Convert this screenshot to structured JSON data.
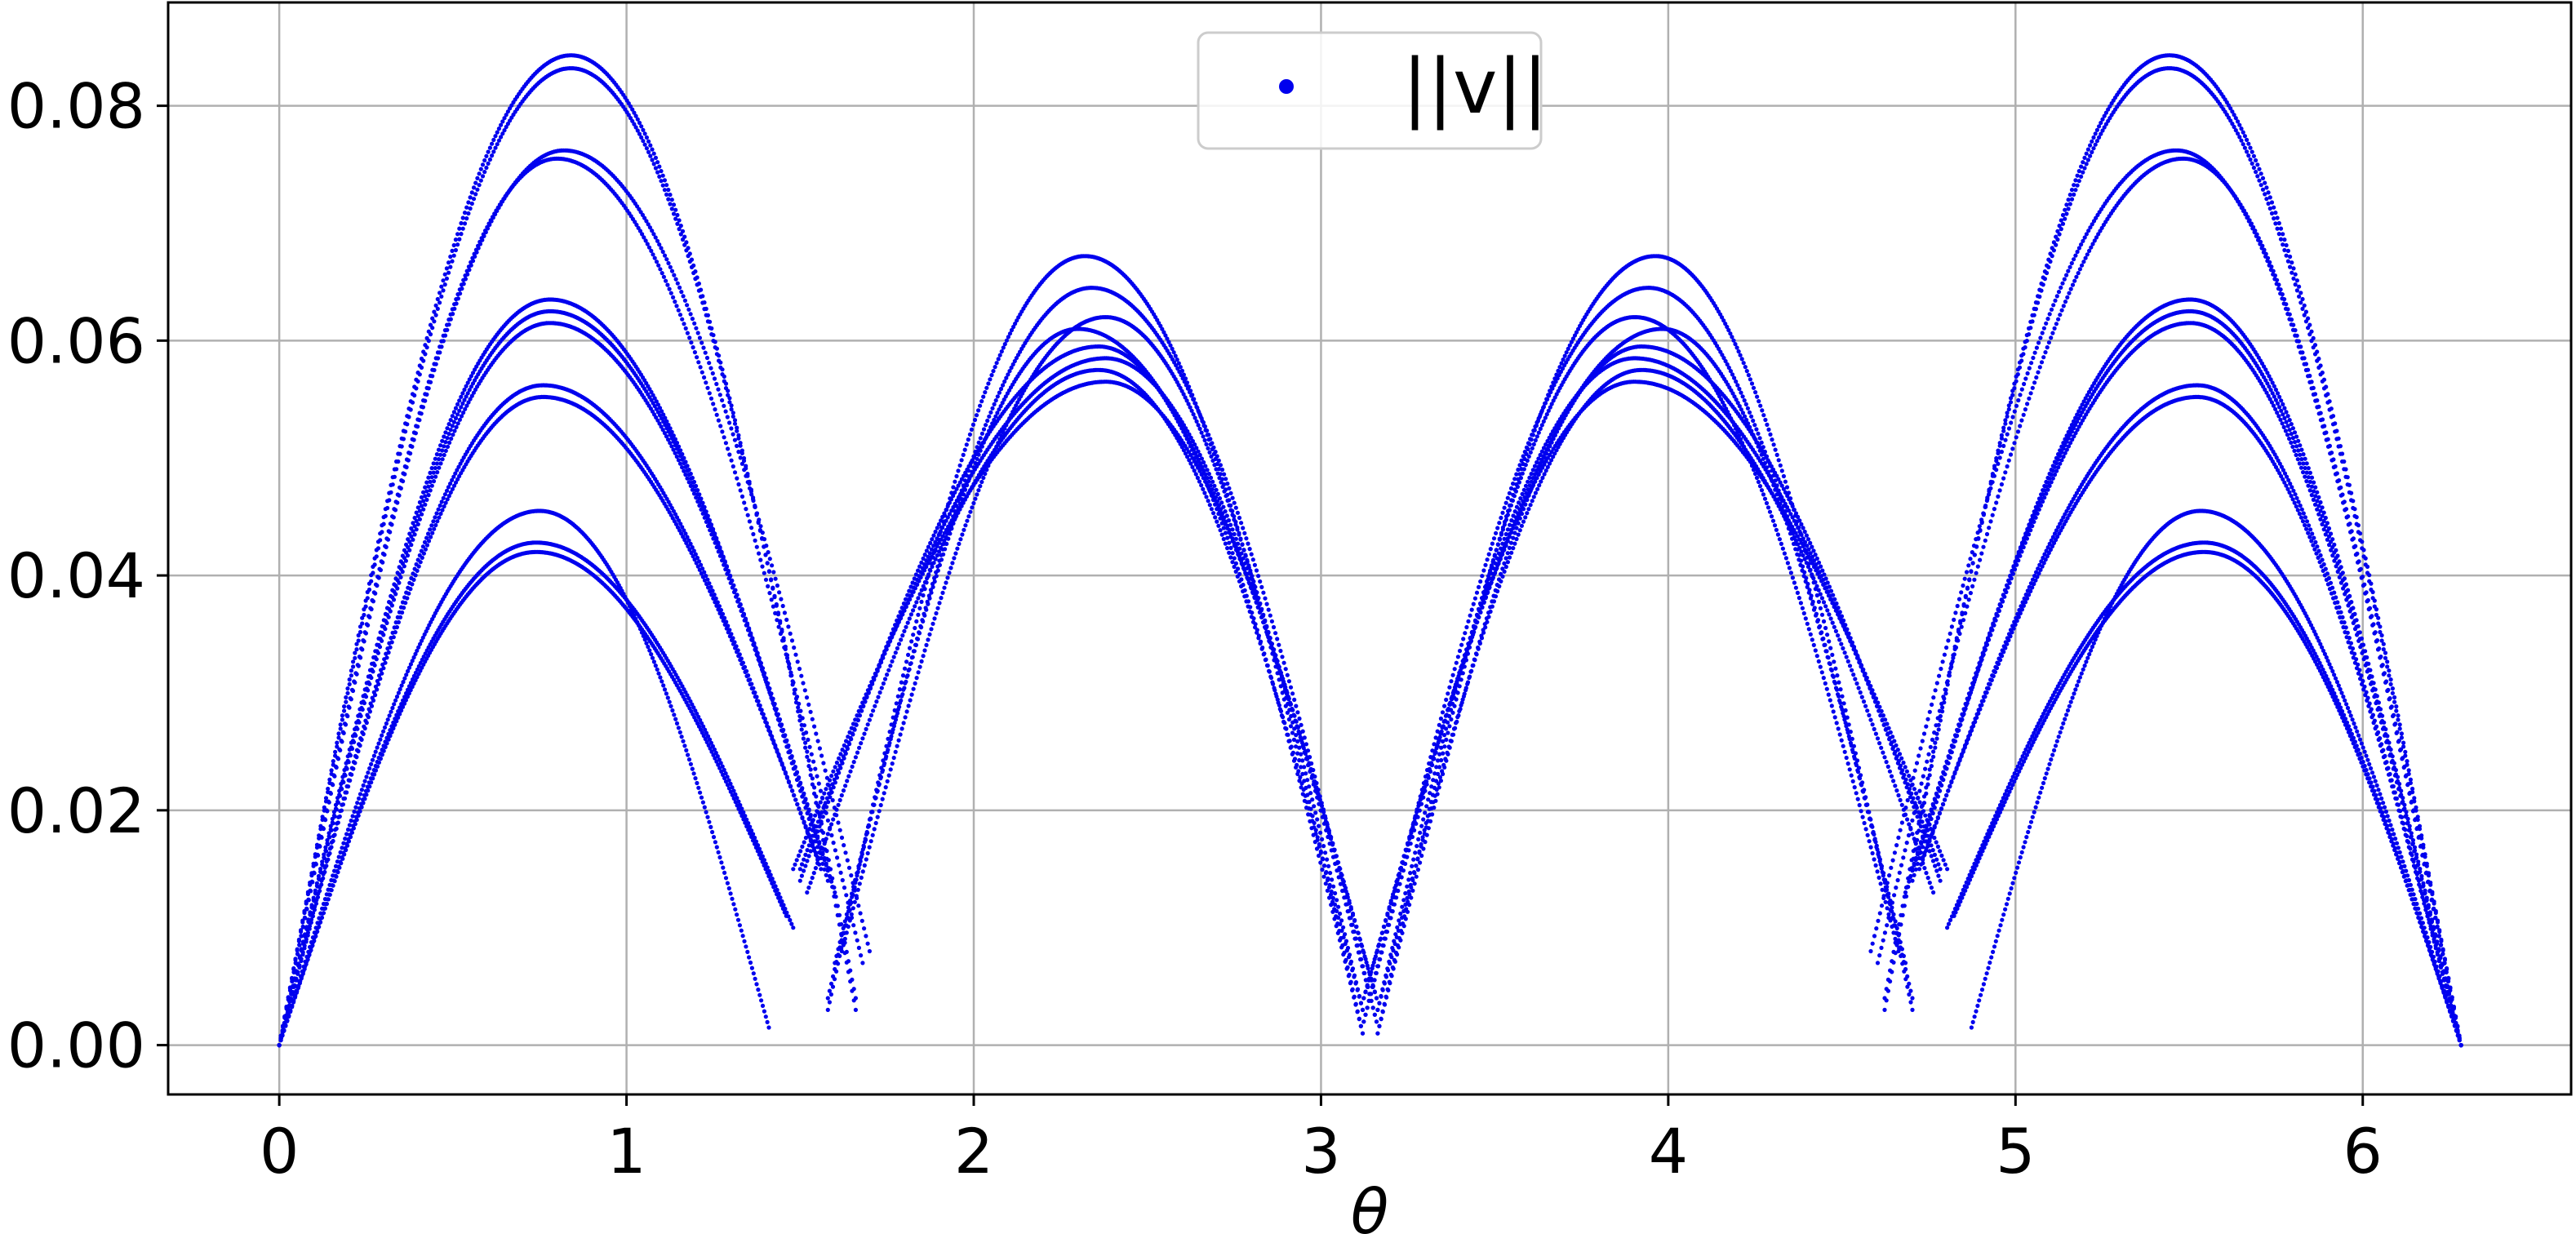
{
  "colors": {
    "series": "#0000ee",
    "grid": "#b0b0b0",
    "frame": "#000000",
    "legend_border": "#cccccc"
  },
  "chart_data": {
    "type": "scatter",
    "title": "",
    "xlabel": "θ",
    "ylabel": "",
    "xlim": [
      -0.32,
      6.6
    ],
    "ylim": [
      -0.0042,
      0.0888
    ],
    "grid": true,
    "legend_placement": "top-center",
    "x_ticks": [
      0,
      1,
      2,
      3,
      4,
      5,
      6
    ],
    "x_tick_labels": [
      "0",
      "1",
      "2",
      "3",
      "4",
      "5",
      "6"
    ],
    "y_ticks": [
      0.0,
      0.02,
      0.04,
      0.06,
      0.08
    ],
    "y_tick_labels": [
      "0.00",
      "0.02",
      "0.04",
      "0.06",
      "0.08"
    ],
    "series": [
      {
        "name": "||v||",
        "description_of_shape": "Family of sampled curves, symmetric about θ=π, each a union of arch segments",
        "curve_families": {
          "outer_lobes": [
            {
              "peak_theta": 0.84,
              "peak_value": 0.0843,
              "dip_theta": 1.66,
              "dip_value": 0.003
            },
            {
              "peak_theta": 0.84,
              "peak_value": 0.0832,
              "dip_theta": 1.66,
              "dip_value": 0.004
            },
            {
              "peak_theta": 0.82,
              "peak_value": 0.0762,
              "dip_theta": 1.7,
              "dip_value": 0.008
            },
            {
              "peak_theta": 0.8,
              "peak_value": 0.0755,
              "dip_theta": 1.68,
              "dip_value": 0.007
            },
            {
              "peak_theta": 0.78,
              "peak_value": 0.0635,
              "dip_theta": 1.58,
              "dip_value": 0.014
            },
            {
              "peak_theta": 0.78,
              "peak_value": 0.0625,
              "dip_theta": 1.58,
              "dip_value": 0.015
            },
            {
              "peak_theta": 0.78,
              "peak_value": 0.0615,
              "dip_theta": 1.6,
              "dip_value": 0.013
            },
            {
              "peak_theta": 0.76,
              "peak_value": 0.0562,
              "dip_theta": 1.56,
              "dip_value": 0.015
            },
            {
              "peak_theta": 0.76,
              "peak_value": 0.0552,
              "dip_theta": 1.55,
              "dip_value": 0.016
            },
            {
              "peak_theta": 0.75,
              "peak_value": 0.0455,
              "dip_theta": 1.41,
              "dip_value": 0.0015
            },
            {
              "peak_theta": 0.74,
              "peak_value": 0.0428,
              "dip_theta": 1.48,
              "dip_value": 0.01
            },
            {
              "peak_theta": 0.74,
              "peak_value": 0.042,
              "dip_theta": 1.46,
              "dip_value": 0.011
            }
          ],
          "inner_lobes": [
            {
              "peak_theta": 2.32,
              "peak_value": 0.0672
            },
            {
              "peak_theta": 2.34,
              "peak_value": 0.0645
            },
            {
              "peak_theta": 2.38,
              "peak_value": 0.062
            },
            {
              "peak_theta": 2.3,
              "peak_value": 0.061
            },
            {
              "peak_theta": 2.36,
              "peak_value": 0.0595
            },
            {
              "peak_theta": 2.38,
              "peak_value": 0.0585
            },
            {
              "peak_theta": 2.36,
              "peak_value": 0.0575
            },
            {
              "peak_theta": 2.38,
              "peak_value": 0.0565
            }
          ],
          "center_dip": {
            "theta": 3.14,
            "values": [
              0.001,
              0.002,
              0.003,
              0.004
            ]
          }
        }
      }
    ]
  }
}
